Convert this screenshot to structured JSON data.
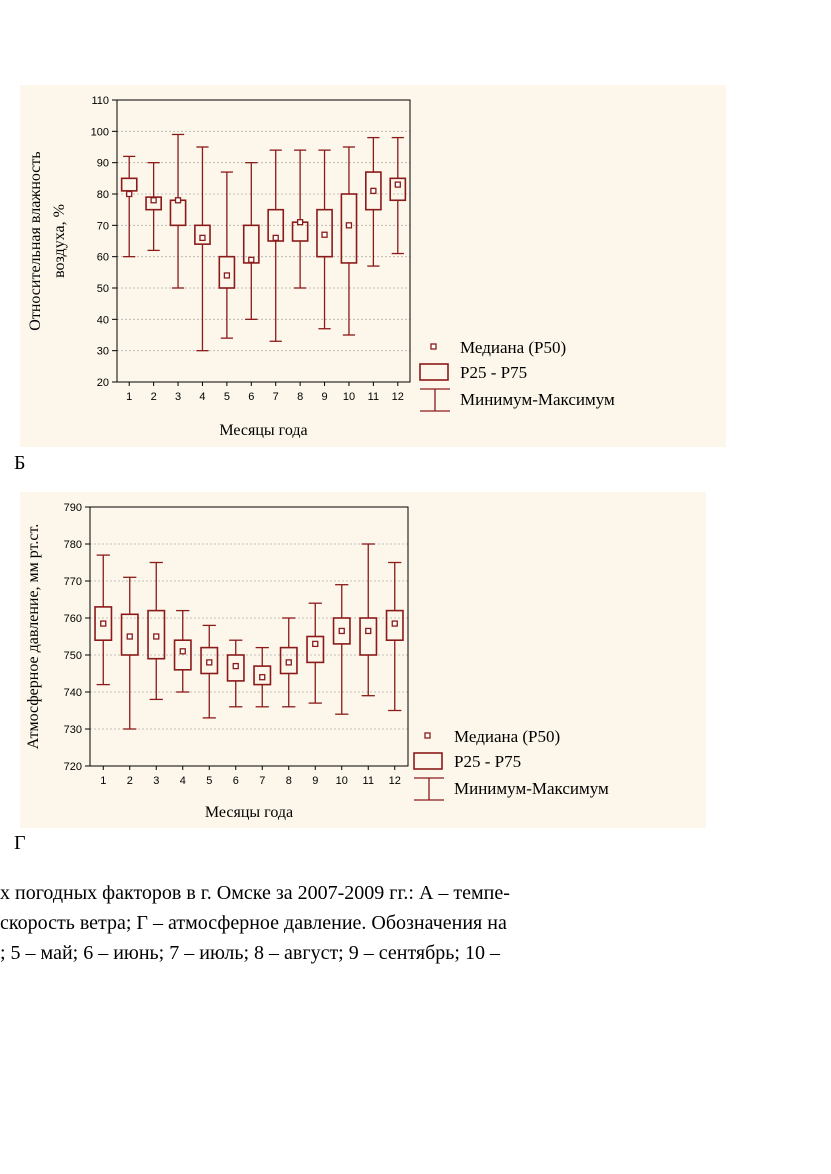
{
  "colors": {
    "series": "#8b1a1a",
    "panel_bg": "#fcf7ea",
    "grid": "#b0b0b0"
  },
  "chart_data": [
    {
      "type": "box",
      "panel_label": "Б",
      "xlabel": "Месяцы года",
      "ylabel_line1": "Относительная влажность",
      "ylabel_line2": "воздуха, %",
      "categories": [
        "1",
        "2",
        "3",
        "4",
        "5",
        "6",
        "7",
        "8",
        "9",
        "10",
        "11",
        "12"
      ],
      "ylim": [
        20,
        110
      ],
      "yticks": [
        20,
        30,
        40,
        50,
        60,
        70,
        80,
        90,
        100,
        110
      ],
      "grid": true,
      "legend_position": "bottom-right",
      "legend": {
        "median": "Медиана (P50)",
        "iqr": "P25 - P75",
        "range": "Минимум-Максимум"
      },
      "median": [
        80,
        78,
        78,
        66,
        54,
        59,
        66,
        71,
        67,
        70,
        81,
        83
      ],
      "p25": [
        81,
        75,
        70,
        64,
        50,
        58,
        65,
        65,
        60,
        58,
        75,
        78
      ],
      "p75": [
        85,
        79,
        78,
        70,
        60,
        70,
        75,
        71,
        75,
        80,
        87,
        85
      ],
      "min": [
        60,
        62,
        50,
        30,
        34,
        40,
        33,
        50,
        37,
        35,
        57,
        61
      ],
      "max": [
        92,
        90,
        99,
        95,
        87,
        90,
        94,
        94,
        94,
        95,
        98,
        98
      ]
    },
    {
      "type": "box",
      "panel_label": "Г",
      "xlabel": "Месяцы года",
      "ylabel_line1": "Атмосферное давление, мм рт.ст.",
      "ylabel_line2": "",
      "categories": [
        "1",
        "2",
        "3",
        "4",
        "5",
        "6",
        "7",
        "8",
        "9",
        "10",
        "11",
        "12"
      ],
      "ylim": [
        720,
        790
      ],
      "yticks": [
        720,
        730,
        740,
        750,
        760,
        770,
        780,
        790
      ],
      "grid": true,
      "legend_position": "bottom-right",
      "legend": {
        "median": "Медиана (P50)",
        "iqr": "P25 - P75",
        "range": "Минимум-Максимум"
      },
      "median": [
        758.5,
        755,
        755,
        751,
        748,
        747,
        744,
        748,
        753,
        756.5,
        756.5,
        758.5
      ],
      "p25": [
        754,
        750,
        749,
        746,
        745,
        743,
        742,
        745,
        748,
        753,
        750,
        754
      ],
      "p75": [
        763,
        761,
        762,
        754,
        752,
        750,
        747,
        752,
        755,
        760,
        760,
        762
      ],
      "min": [
        742,
        730,
        738,
        740,
        733,
        736,
        736,
        736,
        737,
        734,
        739,
        735
      ],
      "max": [
        777,
        771,
        775,
        762,
        758,
        754,
        752,
        760,
        764,
        769,
        780,
        775
      ]
    }
  ],
  "caption": {
    "line1": "х погодных факторов в г. Омске за 2007-2009 гг.: А – темпе-",
    "line2": "скорость ветра; Г – атмосферное давление. Обозначения на",
    "line3": "; 5 – май; 6 – июнь; 7 – июль; 8 – август; 9 – сентябрь; 10 –"
  }
}
